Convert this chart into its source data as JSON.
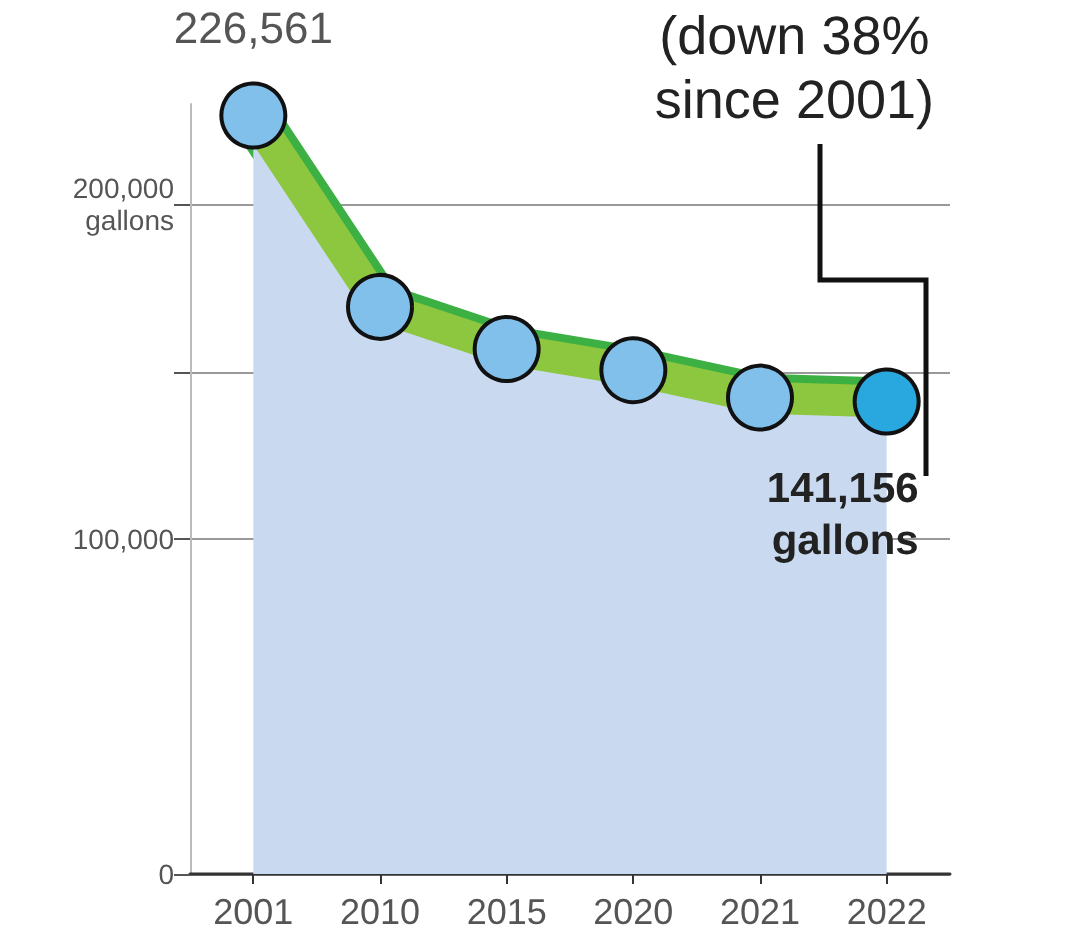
{
  "chart_data": {
    "type": "area",
    "categories": [
      "2001",
      "2010",
      "2015",
      "2020",
      "2021",
      "2022"
    ],
    "series": [
      {
        "color": "#8dc63f",
        "values": [
          226561,
          169400,
          156800,
          150500,
          142300,
          141156
        ],
        "colors": [
          "#82c0ec",
          "#82c0ec",
          "#82c0ec",
          "#82c0ec",
          "#82c0ec",
          "#29a8e0"
        ],
        "value_labels": [
          "226,561",
          null,
          null,
          null,
          null,
          "141,156\ngallons"
        ]
      }
    ],
    "ylim": [
      0,
      230000
    ],
    "yticks": [
      0,
      {
        "value": 100000,
        "label": "100,000"
      },
      {
        "value": 150000,
        "label": null
      },
      {
        "value": 200000,
        "label": "200,000\ngallons"
      }
    ],
    "grid": "y",
    "marker": "circle",
    "line_style": "solid",
    "annotations": [
      "(down 38%\nsince 2001)"
    ]
  }
}
